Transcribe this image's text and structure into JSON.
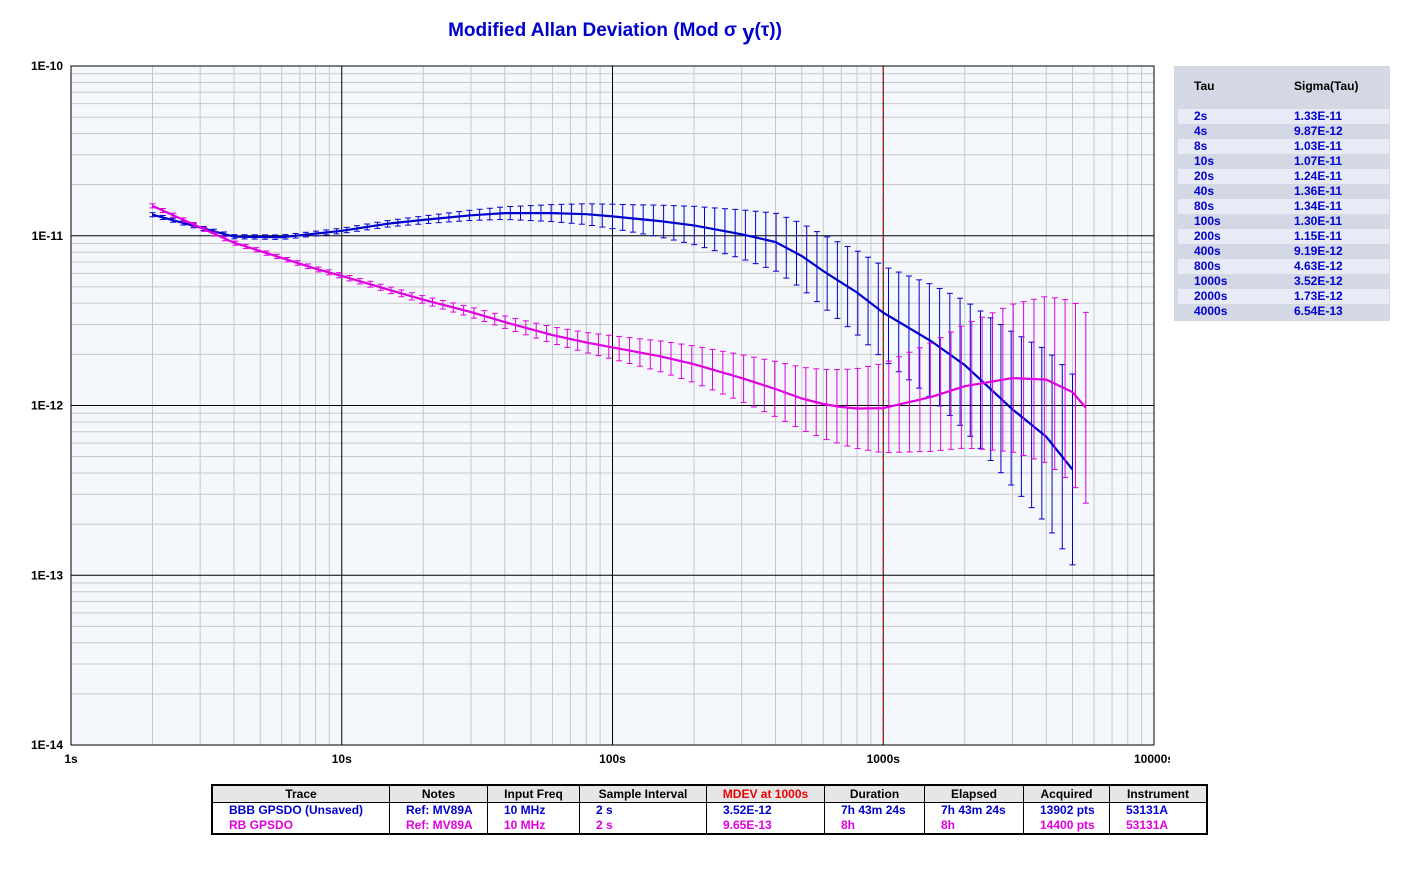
{
  "title_prefix": "Modified Allan Deviation (Mod σ",
  "title_sub": "y",
  "title_suffix": "(τ))",
  "chart_data": {
    "type": "line",
    "x_scale": "log",
    "y_scale": "log",
    "xlim": [
      1,
      10000
    ],
    "ylim": [
      1e-14,
      1e-10
    ],
    "x_tick_labels": [
      "1s",
      "10s",
      "100s",
      "1000s",
      "10000s"
    ],
    "y_tick_labels": [
      "1E-10",
      "1E-11",
      "1E-12",
      "1E-13",
      "1E-14"
    ],
    "grid": true,
    "marker_line_x": 1000,
    "series": [
      {
        "name": "BBB GPSDO (Unsaved)",
        "color": "#0000cc",
        "x": [
          2,
          4,
          6,
          8,
          10,
          15,
          20,
          30,
          40,
          60,
          80,
          100,
          150,
          200,
          300,
          400,
          500,
          600,
          700,
          800,
          1000,
          1500,
          2000,
          3000,
          4000,
          5000
        ],
        "y": [
          1.33e-11,
          9.87e-12,
          9.8e-12,
          1.03e-11,
          1.07e-11,
          1.18e-11,
          1.24e-11,
          1.32e-11,
          1.36e-11,
          1.36e-11,
          1.34e-11,
          1.3e-11,
          1.22e-11,
          1.15e-11,
          1.02e-11,
          9.19e-12,
          7.6e-12,
          6.2e-12,
          5.3e-12,
          4.63e-12,
          3.52e-12,
          2.4e-12,
          1.73e-12,
          9.5e-13,
          6.54e-13,
          4.2e-13
        ]
      },
      {
        "name": "RB GPSDO",
        "color": "#e000e0",
        "x": [
          2,
          4,
          6,
          8,
          10,
          15,
          20,
          30,
          40,
          60,
          80,
          100,
          150,
          200,
          300,
          400,
          500,
          600,
          700,
          800,
          1000,
          1500,
          2000,
          3000,
          4000,
          5000,
          5600
        ],
        "y": [
          1.5e-11,
          9.1e-12,
          7.4e-12,
          6.4e-12,
          5.8e-12,
          4.8e-12,
          4.2e-12,
          3.55e-12,
          3.1e-12,
          2.6e-12,
          2.35e-12,
          2.2e-12,
          1.95e-12,
          1.75e-12,
          1.45e-12,
          1.25e-12,
          1.1e-12,
          1.02e-12,
          9.8e-13,
          9.6e-13,
          9.65e-13,
          1.12e-12,
          1.3e-12,
          1.45e-12,
          1.42e-12,
          1.2e-12,
          9.7e-13
        ]
      }
    ]
  },
  "tau_table": {
    "header_tau": "Tau",
    "header_sigma": "Sigma(Tau)",
    "rows": [
      {
        "tau": "2s",
        "sigma": "1.33E-11"
      },
      {
        "tau": "4s",
        "sigma": "9.87E-12"
      },
      {
        "tau": "8s",
        "sigma": "1.03E-11"
      },
      {
        "tau": "10s",
        "sigma": "1.07E-11"
      },
      {
        "tau": "20s",
        "sigma": "1.24E-11"
      },
      {
        "tau": "40s",
        "sigma": "1.36E-11"
      },
      {
        "tau": "80s",
        "sigma": "1.34E-11"
      },
      {
        "tau": "100s",
        "sigma": "1.30E-11"
      },
      {
        "tau": "200s",
        "sigma": "1.15E-11"
      },
      {
        "tau": "400s",
        "sigma": "9.19E-12"
      },
      {
        "tau": "800s",
        "sigma": "4.63E-12"
      },
      {
        "tau": "1000s",
        "sigma": "3.52E-12"
      },
      {
        "tau": "2000s",
        "sigma": "1.73E-12"
      },
      {
        "tau": "4000s",
        "sigma": "6.54E-13"
      }
    ]
  },
  "legend_table": {
    "headers": [
      "Trace",
      "Notes",
      "Input Freq",
      "Sample Interval",
      "MDEV at 1000s",
      "Duration",
      "Elapsed",
      "Acquired",
      "Instrument"
    ],
    "highlight_color": "#ee0000",
    "rows": [
      {
        "color": "#0000cc",
        "cells": [
          "BBB GPSDO (Unsaved)",
          "Ref: MV89A",
          "10 MHz",
          "2 s",
          "3.52E-12",
          "7h 43m 24s",
          "7h 43m 24s",
          "13902 pts",
          "53131A"
        ]
      },
      {
        "color": "#e000e0",
        "cells": [
          "RB GPSDO",
          "Ref: MV89A",
          "10 MHz",
          "2 s",
          "9.65E-13",
          "8h",
          "8h",
          "14400 pts",
          "53131A"
        ]
      }
    ]
  }
}
